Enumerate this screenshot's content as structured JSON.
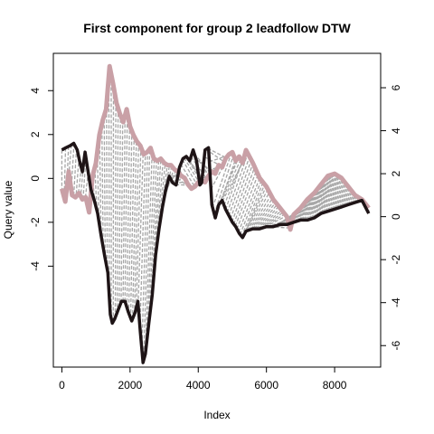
{
  "chart_data": {
    "type": "line",
    "title": "First component for group 2 leadfollow DTW",
    "xlabel": "Index",
    "ylabel": "Query value",
    "xlim": [
      -250,
      9350
    ],
    "ylim_left": [
      -8.6,
      5.7
    ],
    "ylim_right": [
      -7.0,
      7.6
    ],
    "xticks": [
      0,
      2000,
      4000,
      6000,
      8000
    ],
    "yticks_left": [
      -4,
      -2,
      0,
      2,
      4
    ],
    "yticks_right": [
      -6,
      -4,
      -2,
      0,
      2,
      4,
      6
    ],
    "grid": false,
    "colors": {
      "query": "#1e1416",
      "reference": "#c9a0a6",
      "warp": "#a6a6a6",
      "axis": "#000000"
    },
    "series": [
      {
        "axis": "left",
        "x": [
          0,
          120,
          250,
          350,
          450,
          520,
          600,
          680,
          760,
          850,
          950,
          1050,
          1150,
          1250,
          1350,
          1420,
          1480,
          1550,
          1650,
          1750,
          1850,
          1950,
          2050,
          2150,
          2230,
          2300,
          2380,
          2450,
          2550,
          2650,
          2750,
          2850,
          2950,
          3050,
          3150,
          3250,
          3350,
          3450,
          3550,
          3650,
          3750,
          3850,
          3950,
          4050,
          4100,
          4200,
          4300,
          4400,
          4500,
          4600,
          4700,
          4800,
          4900,
          5000,
          5100,
          5200,
          5300,
          5400,
          5600,
          5800,
          6000,
          6200,
          6400,
          6600,
          6800,
          7000,
          7200,
          7400,
          7600,
          7800,
          8000,
          8200,
          8400,
          8600,
          8800,
          9000
        ],
        "y": [
          1.3,
          1.4,
          1.5,
          1.6,
          1.3,
          0.8,
          0.3,
          1.2,
          0.4,
          -0.5,
          -1.0,
          -1.6,
          -2.6,
          -3.5,
          -4.3,
          -6.2,
          -6.6,
          -6.4,
          -6.0,
          -5.6,
          -5.6,
          -6.1,
          -6.5,
          -6.1,
          -5.6,
          -7.0,
          -8.4,
          -8.0,
          -6.6,
          -5.3,
          -3.5,
          -2.3,
          -1.3,
          -0.5,
          0.1,
          -0.2,
          -0.3,
          0.5,
          0.9,
          1.0,
          0.8,
          1.3,
          0.8,
          -0.3,
          -0.2,
          1.3,
          1.4,
          -1.2,
          -1.8,
          -1.2,
          -1.0,
          -1.4,
          -1.7,
          -2.0,
          -2.2,
          -2.5,
          -2.7,
          -2.4,
          -2.3,
          -2.3,
          -2.2,
          -2.2,
          -2.1,
          -2.1,
          -2.0,
          -1.9,
          -1.9,
          -1.8,
          -1.6,
          -1.5,
          -1.4,
          -1.3,
          -1.2,
          -1.1,
          -1.0,
          -1.6
        ]
      },
      {
        "axis": "right",
        "x": [
          0,
          100,
          200,
          300,
          400,
          500,
          600,
          700,
          800,
          900,
          1000,
          1100,
          1200,
          1300,
          1400,
          1500,
          1600,
          1700,
          1800,
          1900,
          2000,
          2100,
          2200,
          2300,
          2400,
          2500,
          2600,
          2700,
          2800,
          2900,
          3000,
          3100,
          3200,
          3300,
          3400,
          3500,
          3600,
          3700,
          3800,
          3900,
          4000,
          4100,
          4200,
          4300,
          4400,
          4500,
          4600,
          4700,
          4800,
          4900,
          5000,
          5100,
          5200,
          5300,
          5400,
          5600,
          5800,
          6000,
          6200,
          6400,
          6600,
          6700,
          6800,
          7000,
          7200,
          7400,
          7600,
          7800,
          8000,
          8200,
          8400,
          8600,
          8800,
          9000
        ],
        "y": [
          1.3,
          0.7,
          2.1,
          1.0,
          0.9,
          1.1,
          0.8,
          0.9,
          0.2,
          1.9,
          2.5,
          3.8,
          4.5,
          5.0,
          7.0,
          6.2,
          5.3,
          4.8,
          4.4,
          5.0,
          4.2,
          3.8,
          3.5,
          3.3,
          2.9,
          3.0,
          3.2,
          2.7,
          2.6,
          2.7,
          2.5,
          2.4,
          2.4,
          2.2,
          2.1,
          1.9,
          1.8,
          1.5,
          1.3,
          1.4,
          1.6,
          1.7,
          1.6,
          1.9,
          2.1,
          2.0,
          2.4,
          2.3,
          2.7,
          2.9,
          3.0,
          2.6,
          2.8,
          2.5,
          3.1,
          2.5,
          1.8,
          1.4,
          0.8,
          0.4,
          0.0,
          -0.6,
          0.1,
          0.4,
          0.8,
          1.1,
          1.5,
          1.9,
          2.0,
          1.8,
          1.4,
          1.0,
          0.8,
          0.4
        ]
      }
    ]
  }
}
